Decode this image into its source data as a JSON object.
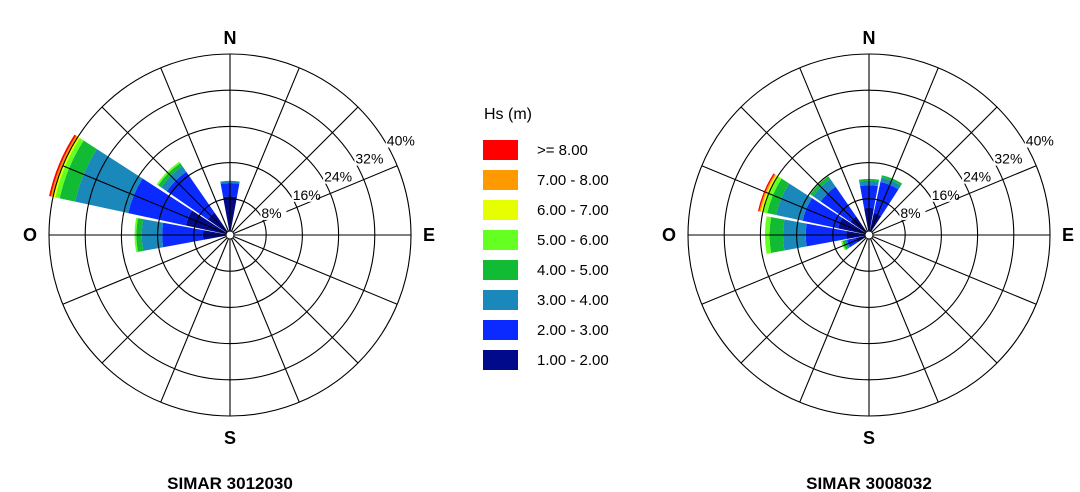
{
  "chart_data": {
    "type": "wind-rose",
    "legend": {
      "title": "Hs (m)",
      "classes": [
        {
          "label": ">= 8.00",
          "color": "#ff0000"
        },
        {
          "label": "7.00 - 8.00",
          "color": "#ff9900"
        },
        {
          "label": "6.00 - 7.00",
          "color": "#e6ff00"
        },
        {
          "label": "5.00 - 6.00",
          "color": "#66ff22"
        },
        {
          "label": "4.00 - 5.00",
          "color": "#11bb33"
        },
        {
          "label": "3.00 - 4.00",
          "color": "#1a88bb"
        },
        {
          "label": "2.00 - 3.00",
          "color": "#0a2aff"
        },
        {
          "label": "1.00 - 2.00",
          "color": "#000a8a"
        }
      ]
    },
    "radial_axis": {
      "max": 40,
      "rings": [
        8,
        16,
        24,
        32,
        40
      ],
      "ring_labels": [
        "8%",
        "16%",
        "24%",
        "32%",
        "40%"
      ]
    },
    "compass_labels": {
      "N": "N",
      "E": "E",
      "S": "S",
      "W": "O"
    },
    "sectors": 16,
    "roses": [
      {
        "title": "SIMAR 3012030",
        "petals": [
          {
            "direction": 0,
            "bands": {
              "1.00 - 2.00": 8.5,
              "2.00 - 3.00": 3.0,
              "3.00 - 4.00": 0.5
            }
          },
          {
            "direction": 315,
            "bands": {
              "1.00 - 2.00": 6.0,
              "2.00 - 3.00": 11.0,
              "3.00 - 4.00": 1.5,
              "4.00 - 5.00": 0.8,
              "5.00 - 6.00": 0.4
            }
          },
          {
            "direction": 292.5,
            "bands": {
              "1.00 - 2.00": 10.0,
              "2.00 - 3.00": 13.0,
              "3.00 - 4.00": 12.0,
              "4.00 - 5.00": 3.5,
              "5.00 - 6.00": 1.0,
              "6.00 - 7.00": 0.6,
              "7.00 - 8.00": 0.4,
              ">= 8.00": 0.4
            }
          },
          {
            "direction": 270,
            "bands": {
              "1.00 - 2.00": 6.0,
              "2.00 - 3.00": 9.0,
              "3.00 - 4.00": 4.5,
              "4.00 - 5.00": 1.2,
              "5.00 - 6.00": 0.4
            }
          }
        ]
      },
      {
        "title": "SIMAR 3008032",
        "petals": [
          {
            "direction": 0,
            "bands": {
              "1.00 - 2.00": 6.0,
              "2.00 - 3.00": 5.0,
              "3.00 - 4.00": 1.0,
              "4.00 - 5.00": 0.4
            }
          },
          {
            "direction": 22.5,
            "bands": {
              "1.00 - 2.00": 5.0,
              "2.00 - 3.00": 7.0,
              "3.00 - 4.00": 1.0,
              "4.00 - 5.00": 0.5
            }
          },
          {
            "direction": 315,
            "bands": {
              "1.00 - 2.00": 5.0,
              "2.00 - 3.00": 8.0,
              "3.00 - 4.00": 2.0,
              "4.00 - 5.00": 0.8
            }
          },
          {
            "direction": 292.5,
            "bands": {
              "1.00 - 2.00": 7.0,
              "2.00 - 3.00": 8.0,
              "3.00 - 4.00": 6.0,
              "4.00 - 5.00": 2.0,
              "5.00 - 6.00": 1.0,
              "6.00 - 7.00": 0.5,
              "7.00 - 8.00": 0.3,
              ">= 8.00": 0.3
            }
          },
          {
            "direction": 270,
            "bands": {
              "1.00 - 2.00": 5.0,
              "2.00 - 3.00": 9.0,
              "3.00 - 4.00": 5.0,
              "4.00 - 5.00": 3.0,
              "5.00 - 6.00": 1.0
            }
          },
          {
            "direction": 247.5,
            "bands": {
              "1.00 - 2.00": 3.0,
              "2.00 - 3.00": 2.0,
              "3.00 - 4.00": 0.5,
              "4.00 - 5.00": 0.5,
              "5.00 - 6.00": 0.3
            }
          }
        ]
      }
    ]
  }
}
